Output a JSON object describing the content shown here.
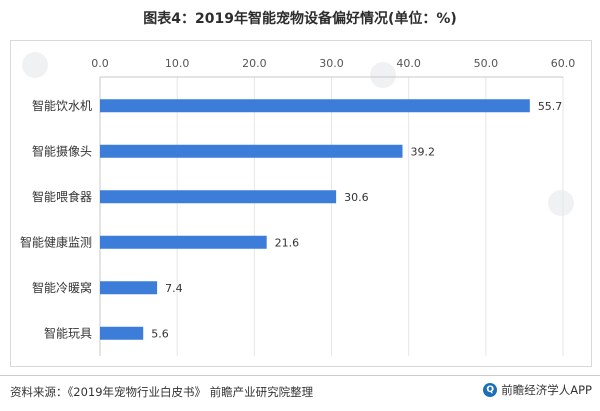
{
  "title": "图表4：2019年智能宠物设备偏好情况(单位：%)",
  "chart_data": {
    "type": "bar",
    "orientation": "horizontal",
    "categories": [
      "智能饮水机",
      "智能摄像头",
      "智能喂食器",
      "智能健康监测",
      "智能冷暖窝",
      "智能玩具"
    ],
    "values": [
      55.7,
      39.2,
      30.6,
      21.6,
      7.4,
      5.6
    ],
    "value_labels": [
      "55.7",
      "39.2",
      "30.6",
      "21.6",
      "7.4",
      "5.6"
    ],
    "xlim": [
      0,
      60
    ],
    "ticks": [
      0,
      10,
      20,
      30,
      40,
      50,
      60
    ],
    "tick_labels": [
      "0.0",
      "10.0",
      "20.0",
      "30.0",
      "40.0",
      "50.0",
      "60.0"
    ],
    "grid": true,
    "axis_position": "top",
    "color": "#3b7dd8"
  },
  "footer": {
    "source": "资料来源：《2019年宠物行业白皮书》 前瞻产业研究院整理",
    "brand": "前瞻经济学人APP",
    "brand_icon": "qianzhan-logo-icon"
  }
}
